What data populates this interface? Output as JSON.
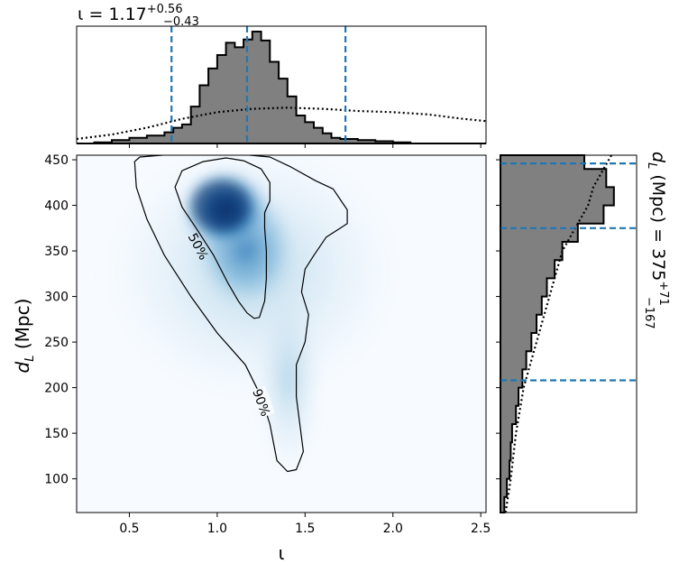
{
  "colors": {
    "hist_fill": "#808080",
    "hist_edge": "#000000",
    "median_line": "#1f77b4",
    "density_low": "#f7fbff",
    "density_high": "#08306b"
  },
  "top_title": {
    "prefix": "ι = ",
    "value": "1.17",
    "upper": "+0.56",
    "lower": "−0.43"
  },
  "right_title": {
    "prefix": "d",
    "sub": "L",
    "mid": " (Mpc) = ",
    "value": "375",
    "upper": "+71",
    "lower": "−167"
  },
  "chart_data": [
    {
      "type": "heatmap",
      "panel": "joint",
      "xlabel": "ι",
      "ylabel_main": "d",
      "ylabel_sub": "L",
      "ylabel_unit": " (Mpc)",
      "xlim": [
        0.2,
        2.53
      ],
      "ylim": [
        63,
        455
      ],
      "xticks": [
        0.5,
        1.0,
        1.5,
        2.0,
        2.5
      ],
      "xtick_labels": [
        "0.5",
        "1.0",
        "1.5",
        "2.0",
        "2.5"
      ],
      "yticks": [
        100,
        150,
        200,
        250,
        300,
        350,
        400,
        450
      ],
      "ytick_labels": [
        "100",
        "150",
        "200",
        "250",
        "300",
        "350",
        "400",
        "450"
      ],
      "density_peak": {
        "x": 1.05,
        "y": 395
      },
      "contours": [
        {
          "label": "50%",
          "points": [
            [
              0.76,
              420
            ],
            [
              0.8,
              438
            ],
            [
              0.92,
              448
            ],
            [
              1.05,
              452
            ],
            [
              1.15,
              449
            ],
            [
              1.25,
              440
            ],
            [
              1.3,
              425
            ],
            [
              1.3,
              405
            ],
            [
              1.27,
              392
            ],
            [
              1.27,
              375
            ],
            [
              1.28,
              350
            ],
            [
              1.28,
              320
            ],
            [
              1.27,
              295
            ],
            [
              1.24,
              277
            ],
            [
              1.21,
              276
            ],
            [
              1.17,
              282
            ],
            [
              1.12,
              295
            ],
            [
              1.06,
              315
            ],
            [
              0.98,
              345
            ],
            [
              0.88,
              375
            ],
            [
              0.8,
              398
            ]
          ]
        },
        {
          "label": "90%",
          "points": [
            [
              0.53,
              448
            ],
            [
              0.56,
              453
            ],
            [
              0.75,
              456
            ],
            [
              0.95,
              456
            ],
            [
              1.13,
              456
            ],
            [
              1.3,
              453
            ],
            [
              1.42,
              442
            ],
            [
              1.56,
              427
            ],
            [
              1.66,
              418
            ],
            [
              1.74,
              395
            ],
            [
              1.74,
              380
            ],
            [
              1.62,
              365
            ],
            [
              1.55,
              345
            ],
            [
              1.5,
              330
            ],
            [
              1.48,
              305
            ],
            [
              1.52,
              280
            ],
            [
              1.5,
              250
            ],
            [
              1.45,
              225
            ],
            [
              1.45,
              190
            ],
            [
              1.47,
              160
            ],
            [
              1.49,
              130
            ],
            [
              1.45,
              110
            ],
            [
              1.4,
              108
            ],
            [
              1.34,
              120
            ],
            [
              1.3,
              160
            ],
            [
              1.25,
              190
            ],
            [
              1.16,
              225
            ],
            [
              1.0,
              260
            ],
            [
              0.85,
              300
            ],
            [
              0.7,
              345
            ],
            [
              0.6,
              385
            ],
            [
              0.54,
              420
            ]
          ]
        }
      ]
    },
    {
      "type": "bar",
      "panel": "top-marginal",
      "orientation": "vertical",
      "xlim": [
        0.2,
        2.53
      ],
      "bin_edges": [
        0.2,
        0.3,
        0.4,
        0.5,
        0.6,
        0.7,
        0.75,
        0.8,
        0.85,
        0.9,
        0.95,
        1.0,
        1.05,
        1.1,
        1.15,
        1.2,
        1.25,
        1.3,
        1.35,
        1.4,
        1.45,
        1.5,
        1.55,
        1.6,
        1.65,
        1.7,
        1.8,
        1.9,
        2.0,
        2.1,
        2.2,
        2.53
      ],
      "posterior": [
        0.0,
        0.01,
        0.03,
        0.05,
        0.07,
        0.1,
        0.14,
        0.17,
        0.33,
        0.52,
        0.67,
        0.79,
        0.9,
        0.86,
        0.93,
        1.0,
        0.92,
        0.73,
        0.58,
        0.42,
        0.25,
        0.19,
        0.14,
        0.09,
        0.05,
        0.04,
        0.03,
        0.02,
        0.01,
        0.0,
        0.0
      ],
      "prior_x": [
        0.2,
        0.4,
        0.6,
        0.8,
        1.0,
        1.2,
        1.4,
        1.6,
        1.8,
        2.0,
        2.2,
        2.4,
        2.53
      ],
      "prior": [
        0.04,
        0.08,
        0.14,
        0.22,
        0.28,
        0.31,
        0.32,
        0.31,
        0.29,
        0.28,
        0.26,
        0.22,
        0.2
      ],
      "median": 1.17,
      "lower": 0.74,
      "upper": 1.73
    },
    {
      "type": "bar",
      "panel": "right-marginal",
      "orientation": "horizontal",
      "ylim": [
        63,
        455
      ],
      "bin_edges": [
        63,
        80,
        100,
        120,
        140,
        160,
        180,
        200,
        220,
        240,
        260,
        280,
        300,
        320,
        340,
        360,
        380,
        400,
        420,
        440,
        455
      ],
      "posterior": [
        0.03,
        0.05,
        0.07,
        0.08,
        0.09,
        0.12,
        0.14,
        0.17,
        0.2,
        0.24,
        0.28,
        0.32,
        0.36,
        0.42,
        0.48,
        0.6,
        0.8,
        0.88,
        0.82,
        0.65
      ],
      "prior_y": [
        63,
        100,
        150,
        200,
        250,
        300,
        350,
        380,
        400,
        420,
        440,
        455
      ],
      "prior": [
        0.04,
        0.08,
        0.12,
        0.18,
        0.28,
        0.38,
        0.48,
        0.6,
        0.68,
        0.72,
        0.8,
        0.86
      ],
      "median": 375,
      "lower": 208,
      "upper": 446
    }
  ]
}
